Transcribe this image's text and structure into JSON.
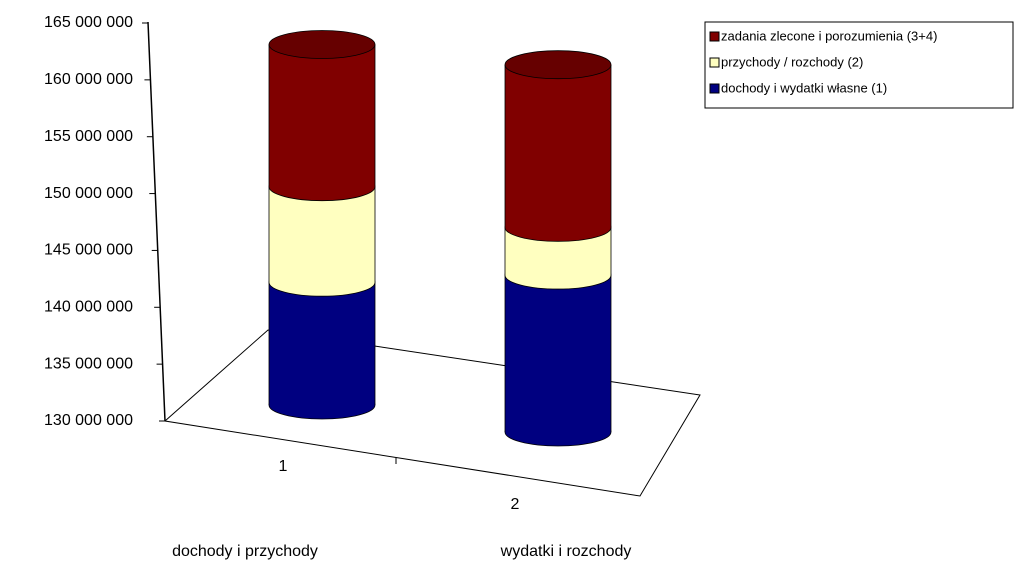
{
  "chart_data": {
    "type": "cylinder3d-stacked",
    "categories": [
      "1",
      "2"
    ],
    "category_descriptions": [
      "dochody i przychody",
      "wydatki i rozchody"
    ],
    "series": [
      {
        "name": "dochody i wydatki własne (1)",
        "color": "#000080",
        "values": [
          140800000,
          143800000
        ]
      },
      {
        "name": "przychody / rozchody (2)",
        "color": "#ffffc0",
        "values": [
          8400000,
          4200000
        ]
      },
      {
        "name": "zadania zlecone i porozumienia (3+4)",
        "color": "#800000",
        "values": [
          12500000,
          14300000
        ]
      }
    ],
    "ylim": [
      130000000,
      165000000
    ],
    "yticks": [
      {
        "value": 130000000,
        "label": "130 000 000"
      },
      {
        "value": 135000000,
        "label": "135 000 000"
      },
      {
        "value": 140000000,
        "label": "140 000 000"
      },
      {
        "value": 145000000,
        "label": "145 000 000"
      },
      {
        "value": 150000000,
        "label": "150 000 000"
      },
      {
        "value": 155000000,
        "label": "155 000 000"
      },
      {
        "value": 160000000,
        "label": "160 000 000"
      },
      {
        "value": 165000000,
        "label": "165 000 000"
      }
    ],
    "legend": "top-right"
  }
}
